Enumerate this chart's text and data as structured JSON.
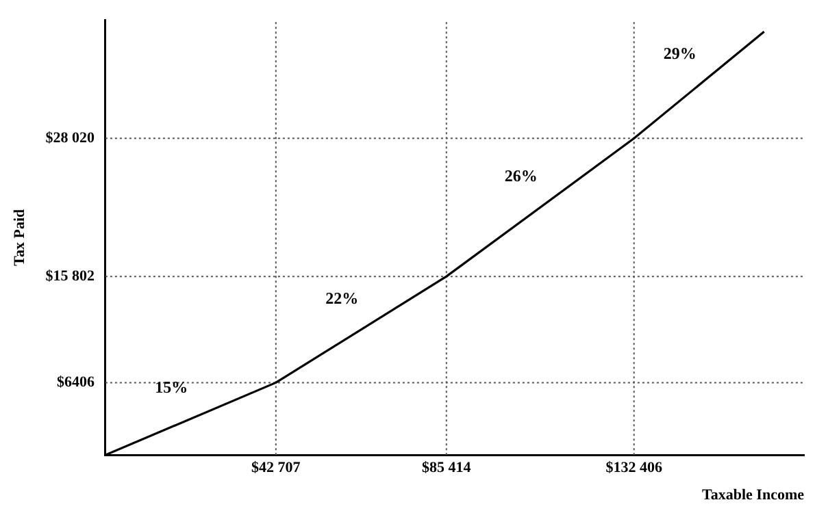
{
  "chart_data": {
    "type": "line",
    "xlabel": "Taxable Income",
    "ylabel": "Tax Paid",
    "x": [
      0,
      42707,
      85414,
      132406,
      165000
    ],
    "series": [
      {
        "color": "#000000",
        "values": [
          0,
          6406,
          15802,
          28020,
          37472
        ]
      }
    ],
    "xlim": [
      0,
      175000
    ],
    "ylim": [
      0,
      38500
    ],
    "xticks": [
      {
        "value": 42707,
        "label": "$42 707"
      },
      {
        "value": 85414,
        "label": "$85 414"
      },
      {
        "value": 132406,
        "label": "$132 406"
      }
    ],
    "yticks": [
      {
        "value": 6406,
        "label": "$6406"
      },
      {
        "value": 15802,
        "label": "$15 802"
      },
      {
        "value": 28020,
        "label": "$28 020"
      }
    ],
    "ref_lines": [
      {
        "axis": "x",
        "value": 42707,
        "line_style": "dotted"
      },
      {
        "axis": "x",
        "value": 85414,
        "line_style": "dotted"
      },
      {
        "axis": "x",
        "value": 132406,
        "line_style": "dotted"
      },
      {
        "axis": "y",
        "value": 6406,
        "line_style": "dotted"
      },
      {
        "axis": "y",
        "value": 15802,
        "line_style": "dotted"
      },
      {
        "axis": "y",
        "value": 28020,
        "line_style": "dotted"
      }
    ],
    "annotations": [
      "15%",
      "22%",
      "26%",
      "29%"
    ],
    "grid": false,
    "legend": false,
    "marker": "none",
    "line_style": "solid"
  }
}
